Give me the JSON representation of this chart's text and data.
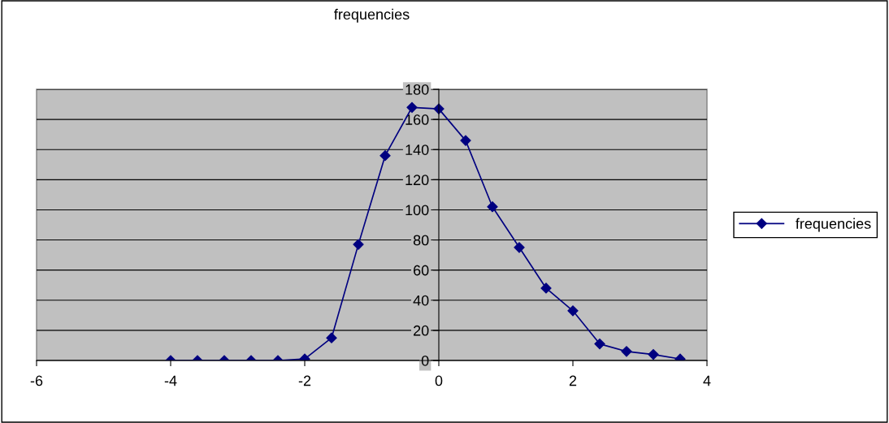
{
  "chart_data": {
    "type": "line",
    "title": "frequencies",
    "x": [
      -4,
      -3.6,
      -3.2,
      -2.8,
      -2.4,
      -2,
      -1.6,
      -1.2,
      -0.8,
      -0.4,
      0,
      0.4,
      0.8,
      1.2,
      1.6,
      2,
      2.4,
      2.8,
      3.2,
      3.6
    ],
    "series": [
      {
        "name": "frequencies",
        "color": "#000080",
        "values": [
          0,
          0,
          0,
          0,
          0,
          1,
          15,
          77,
          136,
          168,
          167,
          146,
          102,
          75,
          48,
          33,
          11,
          6,
          4,
          1
        ]
      }
    ],
    "xlim": [
      -6,
      4
    ],
    "xticks": [
      -6,
      -4,
      -2,
      0,
      2,
      4
    ],
    "ylim": [
      0,
      180
    ],
    "yticks": [
      0,
      20,
      40,
      60,
      80,
      100,
      120,
      140,
      160,
      180
    ],
    "grid": "y",
    "legend": "right",
    "marker": "diamond",
    "line_style": "solid"
  }
}
